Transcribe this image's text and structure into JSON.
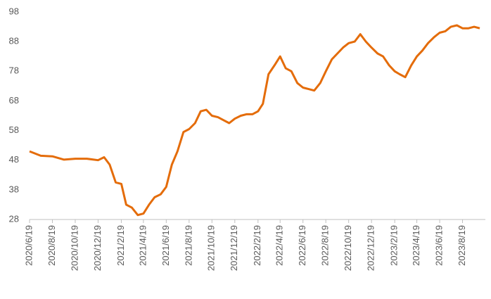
{
  "chart_data": {
    "type": "line",
    "x": [
      "2020/6/19",
      "2020/7/19",
      "2020/8/19",
      "2020/9/19",
      "2020/10/19",
      "2020/11/19",
      "2020/12/19",
      "2021/1/4",
      "2021/1/19",
      "2021/2/4",
      "2021/2/19",
      "2021/3/4",
      "2021/3/19",
      "2021/4/4",
      "2021/4/19",
      "2021/5/4",
      "2021/5/19",
      "2021/6/4",
      "2021/6/19",
      "2021/7/4",
      "2021/7/19",
      "2021/8/4",
      "2021/8/19",
      "2021/9/4",
      "2021/9/19",
      "2021/10/4",
      "2021/10/19",
      "2021/11/4",
      "2021/11/19",
      "2021/12/4",
      "2021/12/19",
      "2022/1/4",
      "2022/1/19",
      "2022/2/4",
      "2022/2/19",
      "2022/3/4",
      "2022/3/19",
      "2022/4/4",
      "2022/4/19",
      "2022/5/4",
      "2022/5/19",
      "2022/6/4",
      "2022/6/19",
      "2022/7/4",
      "2022/7/19",
      "2022/8/4",
      "2022/8/19",
      "2022/9/4",
      "2022/9/19",
      "2022/10/4",
      "2022/10/19",
      "2022/11/4",
      "2022/11/19",
      "2022/12/4",
      "2022/12/19",
      "2023/1/4",
      "2023/1/19",
      "2023/2/4",
      "2023/2/19",
      "2023/3/4",
      "2023/3/19",
      "2023/4/4",
      "2023/4/19",
      "2023/5/4",
      "2023/5/19",
      "2023/6/4",
      "2023/6/19",
      "2023/7/4",
      "2023/7/19",
      "2023/8/4",
      "2023/8/19",
      "2023/9/4",
      "2023/9/19",
      "2023/10/4"
    ],
    "series": [
      {
        "color": "#e46c0a",
        "values": [
          51,
          49.5,
          49.3,
          48.2,
          48.5,
          48.5,
          48,
          49,
          46.5,
          40.5,
          40,
          33,
          32,
          29.5,
          30,
          33,
          35.5,
          36.5,
          39,
          46.5,
          51,
          57.5,
          58.5,
          60.5,
          64.5,
          65,
          63,
          62.5,
          61.5,
          60.5,
          62,
          63,
          63.5,
          63.5,
          64.5,
          67,
          77,
          80,
          83,
          79,
          78,
          74,
          72.5,
          72,
          71.5,
          74,
          78,
          82,
          84,
          86,
          87.5,
          88,
          90.5,
          88,
          86,
          84,
          83,
          80,
          78,
          77,
          76,
          80,
          83,
          85,
          87.5,
          89.5,
          91,
          91.5,
          93,
          93.5,
          92.5,
          92.5,
          93,
          92.5
        ]
      }
    ],
    "xlim": [
      "2020/6/19",
      "2023/10/19"
    ],
    "xticks": [
      "2020/6/19",
      "2020/8/19",
      "2020/10/19",
      "2020/12/19",
      "2021/2/19",
      "2021/4/19",
      "2021/6/19",
      "2021/8/19",
      "2021/10/19",
      "2021/12/19",
      "2022/2/19",
      "2022/4/19",
      "2022/6/19",
      "2022/8/19",
      "2022/10/19",
      "2022/12/19",
      "2023/2/19",
      "2023/4/19",
      "2023/6/19",
      "2023/8/19"
    ],
    "ylim": [
      28,
      98
    ],
    "yticks": [
      28,
      38,
      48,
      58,
      68,
      78,
      88,
      98
    ],
    "grid": false
  }
}
